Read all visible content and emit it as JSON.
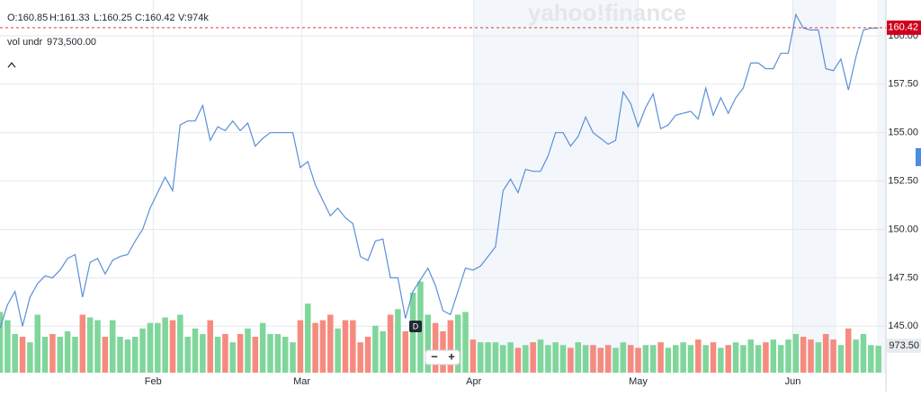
{
  "chart_data": {
    "type": "line",
    "header": {
      "open": "O:160.85",
      "high": "H:161.33",
      "low": "L:160.25",
      "close": "C:160.42",
      "volume": "V:974k",
      "indicator_name": "vol undr",
      "indicator_value": "973,500.00"
    },
    "watermark": "yahoo!finance",
    "marker_label": "D",
    "zoom_out": "−",
    "zoom_in": "+",
    "x": [
      0,
      1,
      2,
      3,
      4,
      5,
      6,
      7,
      8,
      9,
      10,
      11,
      12,
      13,
      14,
      15,
      16,
      17,
      18,
      19,
      20,
      21,
      22,
      23,
      24,
      25,
      26,
      27,
      28,
      29,
      30,
      31,
      32,
      33,
      34,
      35,
      36,
      37,
      38,
      39,
      40,
      41,
      42,
      43,
      44,
      45,
      46,
      47,
      48,
      49,
      50,
      51,
      52,
      53,
      54,
      55,
      56,
      57,
      58,
      59,
      60,
      61,
      62,
      63,
      64,
      65,
      66,
      67,
      68,
      69,
      70,
      71,
      72,
      73,
      74,
      75,
      76,
      77,
      78,
      79,
      80,
      81,
      82,
      83,
      84,
      85,
      86,
      87,
      88,
      89,
      90,
      91,
      92,
      93,
      94,
      95,
      96,
      97,
      98,
      99,
      100,
      101,
      102,
      103,
      104,
      105,
      106,
      107,
      108,
      109,
      110,
      111,
      112,
      113,
      114,
      115,
      116,
      117
    ],
    "xlim": [
      0,
      118
    ],
    "xticks": [
      {
        "value": 20.4,
        "label": "Feb"
      },
      {
        "value": 40.2,
        "label": "Mar"
      },
      {
        "value": 63.1,
        "label": "Apr"
      },
      {
        "value": 85,
        "label": "May"
      },
      {
        "value": 105.6,
        "label": "Jun"
      }
    ],
    "ylim": [
      142.6,
      161.85
    ],
    "yticks": [
      {
        "value": 145,
        "label": "145.00"
      },
      {
        "value": 147.5,
        "label": "147.50"
      },
      {
        "value": 150,
        "label": "150.00"
      },
      {
        "value": 152.5,
        "label": "152.50"
      },
      {
        "value": 155,
        "label": "155.00"
      },
      {
        "value": 157.5,
        "label": "157.50"
      },
      {
        "value": 160,
        "label": "160.00"
      }
    ],
    "y2lim": [
      0,
      13500
    ],
    "y2ticks": [
      {
        "value": 973.5,
        "label": "973.50"
      }
    ],
    "last_price": {
      "value": 160.42,
      "label": "160.42"
    },
    "grid": true,
    "up_color": "#7fd69b",
    "down_color": "#f58b7f",
    "series": [
      {
        "name": "Price",
        "color": "#5b8fd9",
        "values": [
          144.9,
          146.1,
          146.8,
          145,
          146.5,
          147.2,
          147.6,
          147.5,
          147.9,
          148.5,
          148.7,
          146.5,
          148.3,
          148.5,
          147.7,
          148.4,
          148.6,
          148.7,
          149.4,
          150,
          151.1,
          151.9,
          152.7,
          152,
          155.4,
          155.6,
          155.6,
          156.4,
          154.6,
          155.3,
          155.1,
          155.6,
          155.1,
          155.5,
          154.3,
          154.7,
          155,
          155,
          155,
          155,
          153.2,
          153.5,
          152.3,
          151.5,
          150.7,
          151.1,
          150.6,
          150.3,
          148.6,
          148.4,
          149.4,
          149.5,
          147.5,
          147.5,
          145.4,
          146.8,
          147.4,
          148,
          147.1,
          145.8,
          145.6,
          146.8,
          148,
          147.9,
          148.1,
          148.6,
          149.1,
          152,
          152.6,
          151.9,
          153.1,
          153,
          153,
          153.8,
          155,
          155,
          154.3,
          154.8,
          155.8,
          155,
          154.7,
          154.4,
          154.6,
          157.1,
          156.5,
          155.3,
          156.3,
          157,
          155.2,
          155.4,
          155.9,
          156,
          156.1,
          155.7,
          157.3,
          155.9,
          156.8,
          156,
          156.8,
          157.3,
          158.6,
          158.6,
          158.3,
          158.3,
          159.1,
          159.1,
          161.1,
          160.4,
          160.3,
          160.3,
          158.3,
          158.2,
          158.8,
          157.2,
          158.9,
          160.3,
          160.4,
          160.4
        ]
      },
      {
        "name": "Volume",
        "axis": "y2",
        "values": [
          2200,
          1900,
          1400,
          1300,
          1100,
          2100,
          1300,
          1400,
          1300,
          1500,
          1300,
          2100,
          2000,
          1900,
          1300,
          1900,
          1300,
          1200,
          1300,
          1600,
          1800,
          1800,
          2000,
          1900,
          2100,
          1300,
          1600,
          1400,
          1900,
          1300,
          1400,
          1100,
          1400,
          1600,
          1300,
          1800,
          1400,
          1400,
          1300,
          1100,
          1900,
          2500,
          1800,
          1900,
          2100,
          1600,
          1900,
          1900,
          1100,
          1300,
          1700,
          1500,
          2100,
          2300,
          1500,
          2900,
          3300,
          2100,
          1800,
          1500,
          1900,
          2100,
          2200,
          1200,
          1100,
          1100,
          1100,
          1000,
          1100,
          900,
          1000,
          1100,
          1200,
          1000,
          1100,
          1000,
          900,
          1100,
          1000,
          1000,
          900,
          1000,
          900,
          1100,
          1000,
          900,
          1000,
          1000,
          1100,
          900,
          1000,
          1100,
          1000,
          1200,
          1000,
          1100,
          900,
          1000,
          1100,
          1000,
          1200,
          1000,
          1100,
          1200,
          1000,
          1200,
          1400,
          1300,
          1200,
          1100,
          1400,
          1200,
          1000,
          1600,
          1200,
          1400,
          1000,
          973.5
        ]
      }
    ]
  }
}
